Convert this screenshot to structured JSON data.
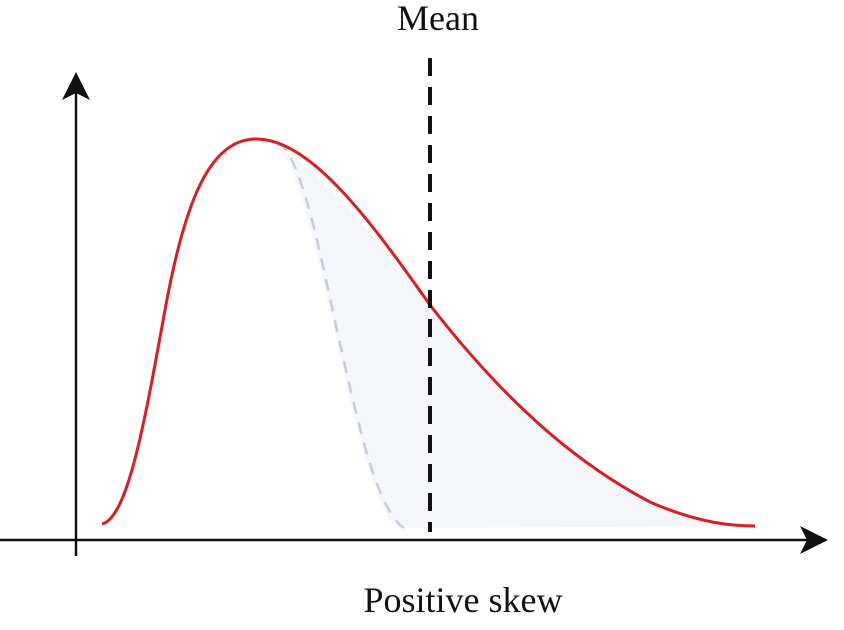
{
  "labels": {
    "mean": "Mean",
    "caption": "Positive skew"
  },
  "colors": {
    "background": "#ffffff",
    "skewed_curve": "#d81e1e",
    "symmetric_curve": "#c7ccdc",
    "shaded_area": "#f4f6fa",
    "mean_line": "#111111",
    "axes": "#111111"
  },
  "diagram": {
    "type": "distribution-skew-illustration",
    "axes": [
      "vertical-axis-with-arrow",
      "horizontal-axis-with-arrow"
    ],
    "curves": [
      {
        "name": "skewed distribution",
        "style": "solid"
      },
      {
        "name": "symmetric reference",
        "style": "dashed"
      }
    ],
    "mean_marker": "dashed-vertical-line"
  }
}
